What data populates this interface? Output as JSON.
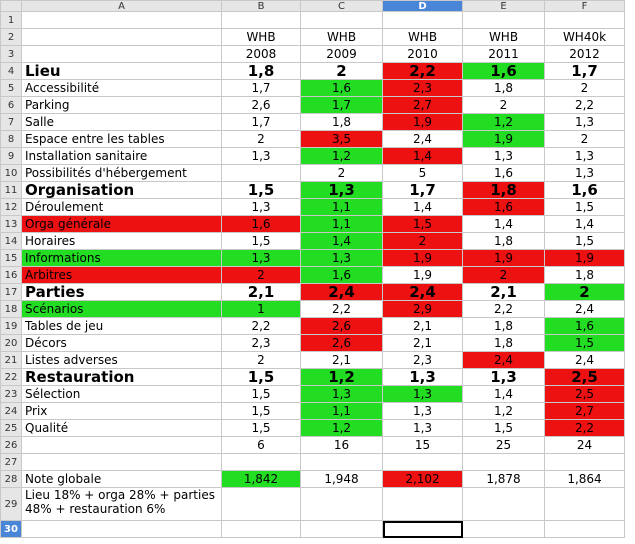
{
  "columns": [
    "",
    "A",
    "B",
    "C",
    "D",
    "E",
    "F"
  ],
  "selected_column": "D",
  "colors": {
    "green": "#22dd22",
    "red": "#ee1111",
    "selection": "#4a86d8"
  },
  "rows": [
    {
      "n": "1",
      "cells": [
        "",
        "",
        "",
        "",
        "",
        ""
      ]
    },
    {
      "n": "2",
      "cells": [
        "",
        "WHB",
        "WHB",
        "WHB",
        "WHB",
        "WH40k"
      ]
    },
    {
      "n": "3",
      "cells": [
        "",
        "2008",
        "2009",
        "2010",
        "2011",
        "2012"
      ]
    },
    {
      "n": "4",
      "bold": true,
      "cells": [
        "Lieu",
        "1,8",
        "2",
        "2,2",
        "1,6",
        "1,7"
      ],
      "colors": [
        "",
        "",
        "",
        "red",
        "green",
        ""
      ]
    },
    {
      "n": "5",
      "cells": [
        "Accessibilité",
        "1,7",
        "1,6",
        "2,3",
        "1,8",
        "2"
      ],
      "colors": [
        "",
        "",
        "green",
        "red",
        "",
        ""
      ]
    },
    {
      "n": "6",
      "cells": [
        "Parking",
        "2,6",
        "1,7",
        "2,7",
        "2",
        "2,2"
      ],
      "colors": [
        "",
        "",
        "green",
        "red",
        "",
        ""
      ]
    },
    {
      "n": "7",
      "cells": [
        "Salle",
        "1,7",
        "1,8",
        "1,9",
        "1,2",
        "1,3"
      ],
      "colors": [
        "",
        "",
        "",
        "red",
        "green",
        ""
      ]
    },
    {
      "n": "8",
      "cells": [
        "Espace entre les tables",
        "2",
        "3,5",
        "2,4",
        "1,9",
        "2"
      ],
      "colors": [
        "",
        "",
        "red",
        "",
        "green",
        ""
      ]
    },
    {
      "n": "9",
      "cells": [
        "Installation sanitaire",
        "1,3",
        "1,2",
        "1,4",
        "1,3",
        "1,3"
      ],
      "colors": [
        "",
        "",
        "green",
        "red",
        "",
        ""
      ]
    },
    {
      "n": "10",
      "cells": [
        "Possibilités d'hébergement",
        "",
        "2",
        "5",
        "1,6",
        "1,3"
      ],
      "colors": [
        "",
        "",
        "",
        "",
        "",
        ""
      ]
    },
    {
      "n": "11",
      "bold": true,
      "cells": [
        "Organisation",
        "1,5",
        "1,3",
        "1,7",
        "1,8",
        "1,6"
      ],
      "colors": [
        "",
        "",
        "green",
        "",
        "red",
        ""
      ]
    },
    {
      "n": "12",
      "cells": [
        "Déroulement",
        "1,3",
        "1,1",
        "1,4",
        "1,6",
        "1,5"
      ],
      "colors": [
        "",
        "",
        "green",
        "",
        "red",
        ""
      ]
    },
    {
      "n": "13",
      "cells": [
        "Orga générale",
        "1,6",
        "1,1",
        "1,5",
        "1,4",
        "1,4"
      ],
      "colors": [
        "red",
        "red",
        "green",
        "red",
        "",
        ""
      ]
    },
    {
      "n": "14",
      "cells": [
        "Horaires",
        "1,5",
        "1,4",
        "2",
        "1,8",
        "1,5"
      ],
      "colors": [
        "",
        "",
        "green",
        "red",
        "",
        ""
      ]
    },
    {
      "n": "15",
      "cells": [
        "Informations",
        "1,3",
        "1,3",
        "1,9",
        "1,9",
        "1,9"
      ],
      "colors": [
        "green",
        "green",
        "green",
        "red",
        "red",
        "red"
      ]
    },
    {
      "n": "16",
      "cells": [
        "Arbitres",
        "2",
        "1,6",
        "1,9",
        "2",
        "1,8"
      ],
      "colors": [
        "red",
        "red",
        "green",
        "",
        "red",
        ""
      ]
    },
    {
      "n": "17",
      "bold": true,
      "cells": [
        "Parties",
        "2,1",
        "2,4",
        "2,4",
        "2,1",
        "2"
      ],
      "colors": [
        "",
        "",
        "red",
        "red",
        "",
        "green"
      ]
    },
    {
      "n": "18",
      "cells": [
        "Scénarios",
        "1",
        "2,2",
        "2,9",
        "2,2",
        "2,4"
      ],
      "colors": [
        "green",
        "green",
        "",
        "red",
        "",
        ""
      ]
    },
    {
      "n": "19",
      "cells": [
        "Tables de jeu",
        "2,2",
        "2,6",
        "2,1",
        "1,8",
        "1,6"
      ],
      "colors": [
        "",
        "",
        "red",
        "",
        "",
        "green"
      ]
    },
    {
      "n": "20",
      "cells": [
        "Décors",
        "2,3",
        "2,6",
        "2,1",
        "1,8",
        "1,5"
      ],
      "colors": [
        "",
        "",
        "red",
        "",
        "",
        "green"
      ]
    },
    {
      "n": "21",
      "cells": [
        "Listes adverses",
        "2",
        "2,1",
        "2,3",
        "2,4",
        "2,4"
      ],
      "colors": [
        "",
        "",
        "",
        "",
        "red",
        ""
      ]
    },
    {
      "n": "22",
      "bold": true,
      "cells": [
        "Restauration",
        "1,5",
        "1,2",
        "1,3",
        "1,3",
        "2,5"
      ],
      "colors": [
        "",
        "",
        "green",
        "",
        "",
        "red"
      ]
    },
    {
      "n": "23",
      "cells": [
        "Sélection",
        "1,5",
        "1,3",
        "1,3",
        "1,4",
        "2,5"
      ],
      "colors": [
        "",
        "",
        "green",
        "green",
        "",
        "red"
      ]
    },
    {
      "n": "24",
      "cells": [
        "Prix",
        "1,5",
        "1,1",
        "1,3",
        "1,2",
        "2,7"
      ],
      "colors": [
        "",
        "",
        "green",
        "",
        "",
        "red"
      ]
    },
    {
      "n": "25",
      "cells": [
        "Qualité",
        "1,5",
        "1,2",
        "1,3",
        "1,5",
        "2,2"
      ],
      "colors": [
        "",
        "",
        "green",
        "",
        "",
        "red"
      ]
    },
    {
      "n": "26",
      "cells": [
        "",
        "6",
        "16",
        "15",
        "25",
        "24"
      ],
      "colors": [
        "",
        "",
        "",
        "",
        "",
        ""
      ]
    },
    {
      "n": "27",
      "cells": [
        "",
        "",
        "",
        "",
        "",
        ""
      ]
    },
    {
      "n": "28",
      "cells": [
        "Note globale",
        "1,842",
        "1,948",
        "2,102",
        "1,878",
        "1,864"
      ],
      "colors": [
        "",
        "green",
        "",
        "red",
        "",
        ""
      ]
    },
    {
      "n": "29",
      "wrap": true,
      "cells": [
        "Lieu 18% + orga 28% + parties 48% + restauration 6%",
        "",
        "",
        "",
        "",
        ""
      ]
    },
    {
      "n": "30",
      "cells": [
        "",
        "",
        "",
        "",
        "",
        ""
      ],
      "cursor_col": 3
    }
  ]
}
